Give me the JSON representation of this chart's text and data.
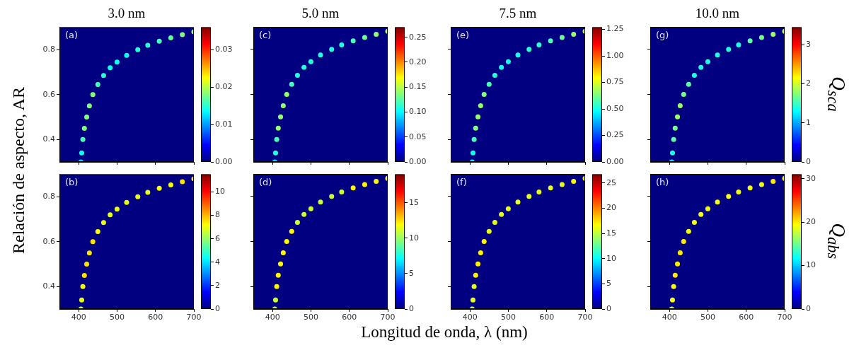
{
  "chart_data": [
    {
      "type": "scatter",
      "title": "3.0 nm",
      "ylabel": "Relación de aspecto, AR",
      "annotations": [
        "(a)"
      ],
      "marker": "circle",
      "tick_labels": "y",
      "x": [
        406,
        408,
        411,
        415,
        421,
        428,
        437,
        450,
        465,
        482,
        500,
        525,
        554,
        580,
        610,
        640,
        670,
        700
      ],
      "values": [
        0.3,
        0.34,
        0.4,
        0.45,
        0.5,
        0.55,
        0.6,
        0.645,
        0.685,
        0.72,
        0.745,
        0.775,
        0.8,
        0.82,
        0.838,
        0.853,
        0.867,
        0.88
      ],
      "cvalues": [
        0.012,
        0.014,
        0.016,
        0.018,
        0.018,
        0.018,
        0.018,
        0.016,
        0.015,
        0.014,
        0.014,
        0.014,
        0.015,
        0.015,
        0.016,
        0.017,
        0.018,
        0.019
      ],
      "xlim": [
        350,
        700
      ],
      "ylim": [
        0.3,
        0.9
      ],
      "xticks": [
        400,
        500,
        600,
        700
      ],
      "yticks": [
        0.4,
        0.6,
        0.8
      ],
      "clim": [
        0,
        0.036
      ],
      "cticks": [
        {
          "value": 0,
          "label": "0.00"
        },
        0.01,
        0.02,
        0.03
      ]
    },
    {
      "type": "scatter",
      "title": "5.0 nm",
      "annotations": [
        "(c)"
      ],
      "marker": "circle",
      "tick_labels": false,
      "x": [
        406,
        408,
        411,
        415,
        421,
        428,
        437,
        450,
        465,
        482,
        500,
        525,
        554,
        580,
        610,
        640,
        670,
        700
      ],
      "values": [
        0.3,
        0.34,
        0.4,
        0.45,
        0.5,
        0.55,
        0.6,
        0.645,
        0.685,
        0.72,
        0.745,
        0.775,
        0.8,
        0.82,
        0.838,
        0.853,
        0.867,
        0.88
      ],
      "cvalues": [
        0.09,
        0.11,
        0.12,
        0.14,
        0.14,
        0.14,
        0.14,
        0.12,
        0.11,
        0.11,
        0.11,
        0.11,
        0.11,
        0.11,
        0.12,
        0.13,
        0.14,
        0.15
      ],
      "xlim": [
        350,
        700
      ],
      "ylim": [
        0.3,
        0.9
      ],
      "xticks": [
        400,
        500,
        600,
        700
      ],
      "yticks": [
        0.4,
        0.6,
        0.8
      ],
      "clim": [
        0,
        0.27
      ],
      "cticks": [
        {
          "value": 0,
          "label": "0.00"
        },
        0.05,
        {
          "value": 0.1,
          "label": "0.10"
        },
        0.15,
        {
          "value": 0.2,
          "label": "0.20"
        },
        0.25
      ]
    },
    {
      "type": "scatter",
      "title": "7.5 nm",
      "annotations": [
        "(e)"
      ],
      "marker": "circle",
      "tick_labels": false,
      "x": [
        406,
        408,
        411,
        415,
        421,
        428,
        437,
        450,
        465,
        482,
        500,
        525,
        554,
        580,
        610,
        640,
        670,
        700
      ],
      "values": [
        0.3,
        0.34,
        0.4,
        0.45,
        0.5,
        0.55,
        0.6,
        0.645,
        0.685,
        0.72,
        0.745,
        0.775,
        0.8,
        0.82,
        0.838,
        0.853,
        0.867,
        0.88
      ],
      "cvalues": [
        0.45,
        0.5,
        0.57,
        0.64,
        0.66,
        0.66,
        0.64,
        0.57,
        0.53,
        0.5,
        0.5,
        0.5,
        0.53,
        0.53,
        0.57,
        0.61,
        0.66,
        0.7
      ],
      "xlim": [
        350,
        700
      ],
      "ylim": [
        0.3,
        0.9
      ],
      "xticks": [
        400,
        500,
        600,
        700
      ],
      "yticks": [
        0.4,
        0.6,
        0.8
      ],
      "clim": [
        0,
        1.27
      ],
      "cticks": [
        {
          "value": 0,
          "label": "0.00"
        },
        0.25,
        {
          "value": 0.5,
          "label": "0.50"
        },
        0.75,
        {
          "value": 1,
          "label": "1.00"
        },
        1.25
      ]
    },
    {
      "type": "scatter",
      "title": "10.0 nm",
      "clabel": "Q$_{sca}$",
      "annotations": [
        "(g)"
      ],
      "marker": "circle",
      "tick_labels": false,
      "x": [
        406,
        408,
        411,
        415,
        421,
        428,
        437,
        450,
        465,
        482,
        500,
        525,
        554,
        580,
        610,
        640,
        670,
        700
      ],
      "values": [
        0.3,
        0.34,
        0.4,
        0.45,
        0.5,
        0.55,
        0.6,
        0.645,
        0.685,
        0.72,
        0.745,
        0.775,
        0.8,
        0.82,
        0.838,
        0.853,
        0.867,
        0.88
      ],
      "cvalues": [
        1.2,
        1.4,
        1.6,
        1.7,
        1.8,
        1.8,
        1.7,
        1.6,
        1.4,
        1.4,
        1.4,
        1.4,
        1.4,
        1.4,
        1.6,
        1.7,
        1.8,
        1.9
      ],
      "xlim": [
        350,
        700
      ],
      "ylim": [
        0.3,
        0.9
      ],
      "xticks": [
        400,
        500,
        600,
        700
      ],
      "yticks": [
        0.4,
        0.6,
        0.8
      ],
      "clim": [
        0,
        3.45
      ],
      "cticks": [
        0,
        1,
        2,
        3
      ]
    },
    {
      "type": "scatter",
      "annotations": [
        "(b)"
      ],
      "marker": "circle",
      "x": [
        406,
        408,
        411,
        415,
        421,
        428,
        437,
        450,
        465,
        482,
        500,
        525,
        554,
        580,
        610,
        640,
        670,
        700
      ],
      "values": [
        0.3,
        0.34,
        0.4,
        0.45,
        0.5,
        0.55,
        0.6,
        0.645,
        0.685,
        0.72,
        0.745,
        0.775,
        0.8,
        0.82,
        0.838,
        0.853,
        0.867,
        0.88
      ],
      "cvalues": [
        6.3,
        6.9,
        7.1,
        7.5,
        7.5,
        7.5,
        7.5,
        7.1,
        6.9,
        6.9,
        6.9,
        6.9,
        6.9,
        6.9,
        7.1,
        7.1,
        7.5,
        7.5
      ],
      "xlim": [
        350,
        700
      ],
      "ylim": [
        0.3,
        0.9
      ],
      "xticks": [
        400,
        500,
        600,
        700
      ],
      "yticks": [
        0.4,
        0.6,
        0.8
      ],
      "clim": [
        0,
        11.5
      ],
      "cticks": [
        0,
        2,
        4,
        6,
        8,
        10
      ]
    },
    {
      "type": "scatter",
      "xlabel": "Longitud de onda, λ (nm)",
      "annotations": [
        "(d)"
      ],
      "marker": "circle",
      "tick_labels": "x",
      "x": [
        406,
        408,
        411,
        415,
        421,
        428,
        437,
        450,
        465,
        482,
        500,
        525,
        554,
        580,
        610,
        640,
        670,
        700
      ],
      "values": [
        0.3,
        0.34,
        0.4,
        0.45,
        0.5,
        0.55,
        0.6,
        0.645,
        0.685,
        0.72,
        0.745,
        0.775,
        0.8,
        0.82,
        0.838,
        0.853,
        0.867,
        0.88
      ],
      "cvalues": [
        10,
        11,
        12,
        12,
        12,
        12,
        12,
        12,
        11,
        11,
        11,
        11,
        11,
        11,
        12,
        12,
        12,
        12
      ],
      "xlim": [
        350,
        700
      ],
      "ylim": [
        0.3,
        0.9
      ],
      "xticks": [
        400,
        500,
        600,
        700
      ],
      "yticks": [
        0.4,
        0.6,
        0.8
      ],
      "clim": [
        0,
        19
      ],
      "cticks": [
        0,
        5,
        10,
        15
      ]
    },
    {
      "type": "scatter",
      "annotations": [
        "(f)"
      ],
      "marker": "circle",
      "tick_labels": "x",
      "x": [
        406,
        408,
        411,
        415,
        421,
        428,
        437,
        450,
        465,
        482,
        500,
        525,
        554,
        580,
        610,
        640,
        670,
        700
      ],
      "values": [
        0.3,
        0.34,
        0.4,
        0.45,
        0.5,
        0.55,
        0.6,
        0.645,
        0.685,
        0.72,
        0.745,
        0.775,
        0.8,
        0.82,
        0.838,
        0.853,
        0.867,
        0.88
      ],
      "cvalues": [
        15,
        16,
        16,
        17,
        17,
        17,
        17,
        16,
        16,
        16,
        16,
        16,
        16,
        16,
        16,
        16,
        17,
        17
      ],
      "xlim": [
        350,
        700
      ],
      "ylim": [
        0.3,
        0.9
      ],
      "xticks": [
        400,
        500,
        600,
        700
      ],
      "yticks": [
        0.4,
        0.6,
        0.8
      ],
      "clim": [
        0,
        26.7
      ],
      "cticks": [
        0,
        5,
        10,
        15,
        20,
        25
      ]
    },
    {
      "type": "scatter",
      "clabel": "Q$_{abs}$",
      "annotations": [
        "(h)"
      ],
      "marker": "circle",
      "tick_labels": "x",
      "x": [
        406,
        408,
        411,
        415,
        421,
        428,
        437,
        450,
        465,
        482,
        500,
        525,
        554,
        580,
        610,
        640,
        670,
        700
      ],
      "values": [
        0.3,
        0.34,
        0.4,
        0.45,
        0.5,
        0.55,
        0.6,
        0.645,
        0.685,
        0.72,
        0.745,
        0.775,
        0.8,
        0.82,
        0.838,
        0.853,
        0.867,
        0.88
      ],
      "cvalues": [
        17,
        19,
        19,
        20,
        20,
        20,
        20,
        19,
        19,
        19,
        19,
        19,
        19,
        19,
        19,
        19,
        20,
        20
      ],
      "xlim": [
        350,
        700
      ],
      "ylim": [
        0.3,
        0.9
      ],
      "xticks": [
        400,
        500,
        600,
        700
      ],
      "yticks": [
        0.4,
        0.6,
        0.8
      ],
      "clim": [
        0,
        31
      ],
      "cticks": [
        0,
        10,
        20,
        30
      ]
    }
  ]
}
